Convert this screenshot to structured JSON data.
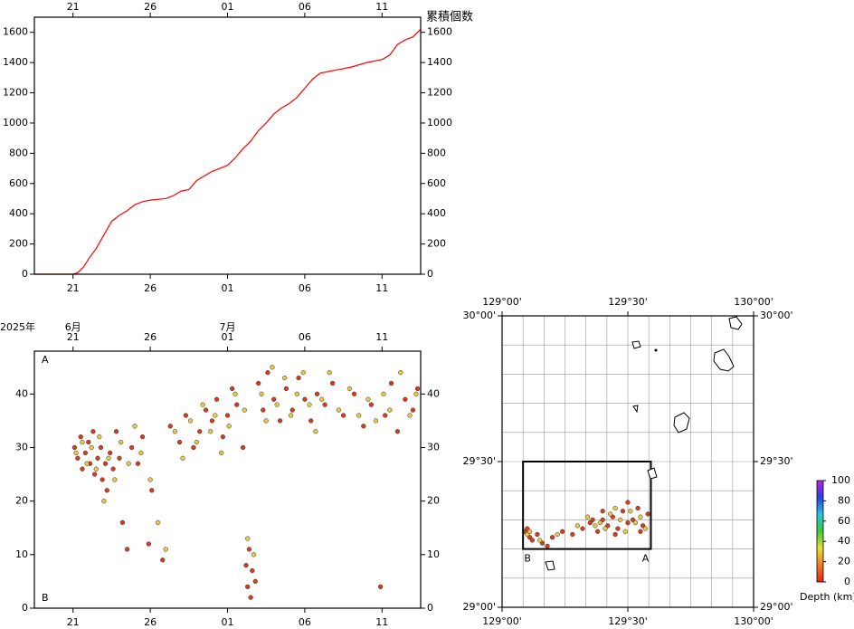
{
  "chart_data": [
    {
      "type": "line",
      "ylabel": "累積個数",
      "x": [
        18.5,
        21,
        21.3,
        21.7,
        22,
        22.5,
        23,
        23.5,
        24,
        24.5,
        25,
        25.5,
        26,
        27,
        27.5,
        28,
        28.5,
        29,
        29.5,
        30,
        31,
        31.5,
        32,
        32.5,
        33,
        33.5,
        34,
        34.5,
        35,
        35.5,
        36,
        36.5,
        37,
        37.5,
        38,
        39,
        40,
        41,
        41.5,
        42,
        42.5,
        43,
        43.5
      ],
      "series": [
        {
          "color": "#ff0000",
          "values": [
            0,
            0,
            10,
            50,
            100,
            170,
            260,
            350,
            390,
            420,
            460,
            480,
            490,
            500,
            520,
            550,
            560,
            620,
            650,
            680,
            720,
            770,
            830,
            880,
            950,
            1000,
            1060,
            1100,
            1130,
            1170,
            1230,
            1290,
            1330,
            1340,
            1350,
            1370,
            1400,
            1420,
            1450,
            1520,
            1550,
            1570,
            1620
          ]
        }
      ],
      "xlim": [
        18.5,
        43.5
      ],
      "ylim": [
        0,
        1700
      ],
      "xticks": [
        21,
        26,
        {
          "value": 31,
          "label": "01"
        },
        {
          "value": 36,
          "label": "06"
        },
        {
          "value": 41,
          "label": "11"
        }
      ],
      "yticks": [
        0,
        200,
        400,
        600,
        800,
        1000,
        1200,
        1400,
        1600
      ]
    },
    {
      "type": "scatter",
      "year_label": "2025年",
      "month_labels": [
        {
          "value": 21,
          "label": "6月"
        },
        {
          "value": 31,
          "label": "7月"
        }
      ],
      "top_label": "A",
      "bottom_label": "B",
      "series": [
        {
          "color": "#d63c1e",
          "x": [
            21.1,
            21.3,
            21.5,
            21.6,
            21.8,
            22,
            22.1,
            22.3,
            22.4,
            22.6,
            22.8,
            22.9,
            23.1,
            23.2,
            23.4,
            23.6,
            23.8,
            24,
            24.2,
            24.5,
            24.8,
            25.2,
            25.5,
            25.9,
            26.1,
            26.8,
            27.3,
            27.9,
            28.3,
            28.8,
            29.2,
            29.6,
            30,
            30.3,
            30.7,
            31,
            31.3,
            31.6,
            32,
            32.2,
            32.3,
            32.4,
            32.5,
            32.6,
            32.8,
            33,
            33.3,
            33.6,
            34,
            34.4,
            34.8,
            35.2,
            35.6,
            36,
            36.4,
            36.8,
            37.3,
            37.8,
            38.5,
            39.2,
            39.8,
            40.3,
            40.9,
            41.2,
            41.6,
            42,
            42.5,
            43,
            43.3
          ],
          "values": [
            30,
            28,
            32,
            26,
            29,
            31,
            27,
            33,
            25,
            28,
            30,
            24,
            27,
            22,
            29,
            26,
            33,
            28,
            16,
            11,
            30,
            27,
            32,
            12,
            22,
            9,
            34,
            31,
            36,
            30,
            33,
            37,
            35,
            39,
            32,
            36,
            41,
            38,
            30,
            8,
            4,
            11,
            2,
            7,
            5,
            42,
            37,
            44,
            39,
            35,
            41,
            37,
            43,
            39,
            35,
            40,
            38,
            42,
            36,
            40,
            34,
            38,
            4,
            36,
            42,
            33,
            39,
            37,
            41
          ]
        },
        {
          "color": "#e6c84a",
          "x": [
            21.2,
            21.6,
            21.9,
            22.2,
            22.5,
            22.7,
            23,
            23.3,
            23.7,
            24.1,
            24.6,
            25,
            25.4,
            26,
            26.5,
            27,
            27.6,
            28.1,
            28.6,
            29,
            29.4,
            29.9,
            30.2,
            30.6,
            31.1,
            31.5,
            32.1,
            32.3,
            32.7,
            33.2,
            33.5,
            33.9,
            34.2,
            34.7,
            35.1,
            35.5,
            35.9,
            36.3,
            36.7,
            37.1,
            37.6,
            38.2,
            38.9,
            39.5,
            40.1,
            40.6,
            41.1,
            41.5,
            42.2,
            42.8,
            43.2
          ],
          "values": [
            29,
            31,
            27,
            30,
            26,
            32,
            20,
            28,
            24,
            31,
            27,
            34,
            29,
            24,
            16,
            11,
            33,
            28,
            35,
            31,
            38,
            33,
            36,
            29,
            34,
            40,
            37,
            13,
            10,
            40,
            35,
            45,
            38,
            43,
            36,
            40,
            44,
            38,
            33,
            39,
            44,
            37,
            41,
            36,
            39,
            35,
            40,
            37,
            44,
            36,
            40
          ]
        }
      ],
      "xlim": [
        18.5,
        43.5
      ],
      "ylim": [
        0,
        48
      ],
      "xticks": [
        21,
        26,
        {
          "value": 31,
          "label": "01"
        },
        {
          "value": 36,
          "label": "06"
        },
        {
          "value": 41,
          "label": "11"
        }
      ],
      "yticks": [
        0,
        10,
        20,
        30,
        40
      ]
    },
    {
      "type": "map",
      "xlim": [
        129,
        130
      ],
      "ylim": [
        29,
        30
      ],
      "xticks": [
        {
          "value": 129,
          "label": "129°00'"
        },
        {
          "value": 129.5,
          "label": "129°30'"
        },
        {
          "value": 130,
          "label": "130°00'"
        }
      ],
      "yticks": [
        {
          "value": 29,
          "label": "29°00'"
        },
        {
          "value": 29.5,
          "label": "29°30'"
        },
        {
          "value": 30,
          "label": "30°00'"
        }
      ],
      "xgrid": [
        129.0833,
        129.1667,
        129.25,
        129.3333,
        129.4167,
        129.5833,
        129.6667,
        129.75,
        129.8333,
        129.9167
      ],
      "ygrid": [
        29.1,
        29.2,
        29.3,
        29.4,
        29.6,
        29.7,
        29.8,
        29.9
      ],
      "profile": {
        "label_a": "A",
        "label_b": "B",
        "lon": [
          129.0833,
          129.5917
        ],
        "lat": [
          29.2,
          29.5
        ]
      },
      "series": [
        {
          "color": "#d63c1e",
          "x": [
            129.09,
            129.11,
            129.1,
            129.12,
            129.14,
            129.16,
            129.18,
            129.2,
            129.24,
            129.28,
            129.32,
            129.35,
            129.38,
            129.4,
            129.42,
            129.44,
            129.46,
            129.48,
            129.5,
            129.52,
            129.54,
            129.56,
            129.58,
            129.45,
            129.5,
            129.55,
            129.4,
            129.36
          ],
          "values": [
            29.26,
            29.24,
            29.27,
            29.23,
            29.25,
            29.22,
            29.21,
            29.24,
            29.26,
            29.25,
            29.27,
            29.29,
            29.26,
            29.3,
            29.28,
            29.31,
            29.27,
            29.33,
            29.29,
            29.3,
            29.34,
            29.28,
            29.32,
            29.25,
            29.36,
            29.26,
            29.33,
            29.3
          ]
        },
        {
          "color": "#e6c84a",
          "x": [
            129.1,
            129.11,
            129.15,
            129.22,
            129.3,
            129.34,
            129.37,
            129.41,
            129.43,
            129.47,
            129.49,
            129.51,
            129.53,
            129.55,
            129.57,
            129.39,
            129.45
          ],
          "values": [
            29.25,
            29.26,
            29.23,
            29.25,
            29.28,
            29.31,
            29.28,
            29.27,
            29.32,
            29.3,
            29.26,
            29.33,
            29.29,
            29.31,
            29.27,
            29.29,
            29.34
          ]
        }
      ],
      "colorbar": {
        "label": "Depth (km)",
        "lim": [
          0,
          100
        ],
        "ticks": [
          0,
          20,
          40,
          60,
          80,
          100
        ],
        "colors": [
          "#e8211c",
          "#f07d1f",
          "#e8e030",
          "#3ec83c",
          "#22c8e0",
          "#2a40e0",
          "#c020e0"
        ]
      }
    }
  ]
}
